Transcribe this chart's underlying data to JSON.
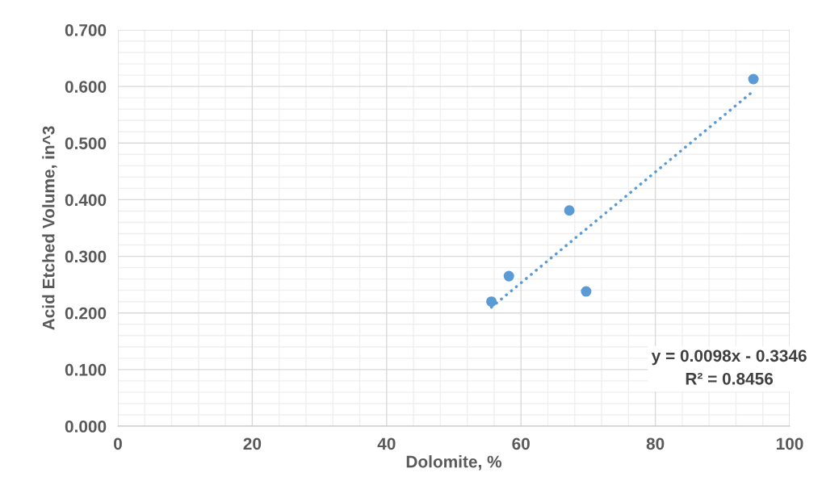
{
  "chart_data": {
    "type": "scatter",
    "xlabel": "Dolomite, %",
    "ylabel": "Acid Etched Volume, in^3",
    "series": [
      {
        "color": "#5b9bd5",
        "x": [
          55.6,
          58.2,
          67.2,
          69.7,
          94.6
        ],
        "values": [
          0.22,
          0.265,
          0.381,
          0.238,
          0.613
        ],
        "marker": "circle"
      },
      {
        "type": "line",
        "color": "#5b9bd5",
        "x": [
          55.6,
          94.6
        ],
        "values": [
          0.21,
          0.592
        ],
        "line_style": "dotted",
        "marker": "none"
      }
    ],
    "xlim": [
      0,
      100
    ],
    "xticks": [
      0,
      20,
      40,
      60,
      80,
      100
    ],
    "ylim": [
      0,
      0.7
    ],
    "yticks": [
      {
        "value": 0,
        "label": "0.000"
      },
      {
        "value": 0.1,
        "label": "0.100"
      },
      {
        "value": 0.2,
        "label": "0.200"
      },
      {
        "value": 0.3,
        "label": "0.300"
      },
      {
        "value": 0.4,
        "label": "0.400"
      },
      {
        "value": 0.5,
        "label": "0.500"
      },
      {
        "value": 0.6,
        "label": "0.600"
      },
      {
        "value": 0.7,
        "label": "0.700"
      }
    ],
    "grid": true,
    "annotations": [
      "y = 0.0098x - 0.3346\nR² = 0.8456"
    ]
  }
}
